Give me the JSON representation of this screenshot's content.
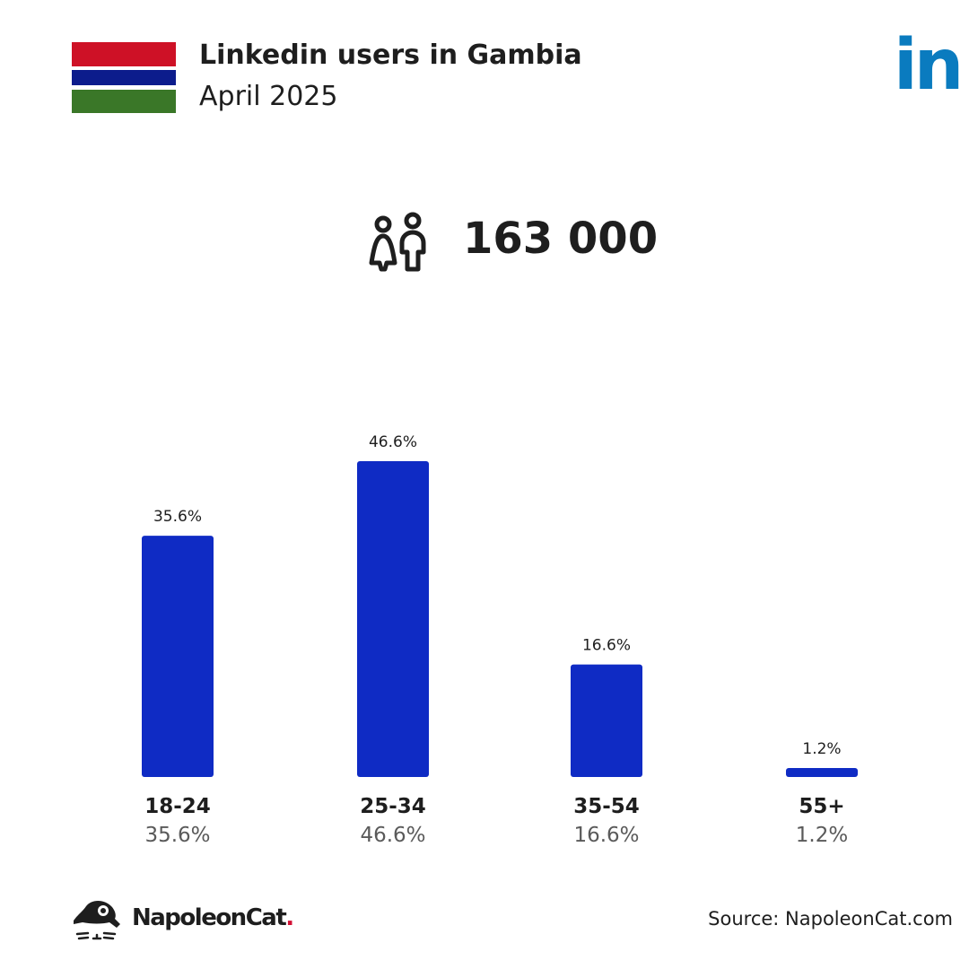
{
  "header": {
    "title": "Linkedin users in Gambia",
    "subtitle": "April 2025",
    "flag_icon": "gambia-flag-icon",
    "flag_colors": [
      "#ce1126",
      "#ffffff",
      "#0c1c8c",
      "#ffffff",
      "#3a7728"
    ],
    "platform_logo_text": "in",
    "platform_color": "#0a7bbf"
  },
  "summary": {
    "icon": "users-icon",
    "total_users": "163 000"
  },
  "chart_data": {
    "type": "bar",
    "title": "Linkedin users in Gambia",
    "categories": [
      "18-24",
      "25-34",
      "35-54",
      "55+"
    ],
    "values": [
      35.6,
      46.6,
      16.6,
      1.2
    ],
    "value_labels": [
      "35.6%",
      "46.6%",
      "16.6%",
      "1.2%"
    ],
    "unit": "%",
    "xlabel": "",
    "ylabel": "",
    "ylim": [
      0,
      46.6
    ],
    "grid": false,
    "bar_color": "#0f2bc4"
  },
  "footer": {
    "brand_name": "NapoleonCat",
    "brand_dot": ".",
    "brand_logo_icon": "napoleoncat-logo-icon",
    "source": "Source: NapoleonCat.com"
  }
}
